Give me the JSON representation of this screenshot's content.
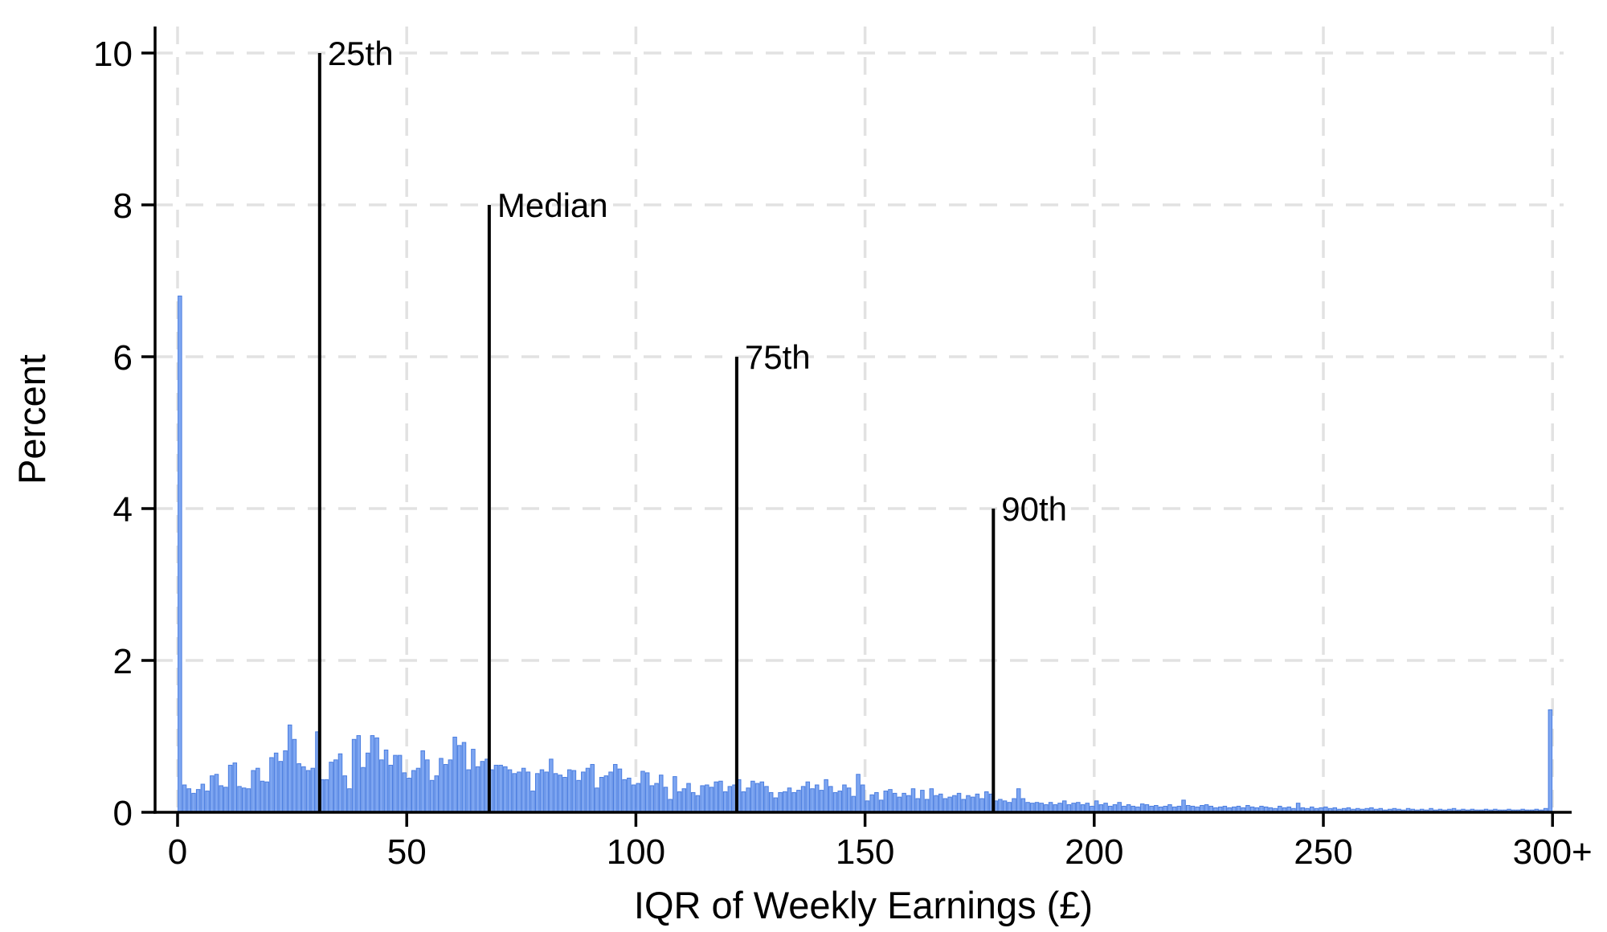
{
  "figure": {
    "background": "#ffffff",
    "description": "Histogram of the interquartile range of weekly earnings with percentile reference lines"
  },
  "chart_data": {
    "type": "bar",
    "subtype": "histogram",
    "title": "",
    "xlabel": "IQR of Weekly Earnings (£)",
    "ylabel": "Percent",
    "x_ticks": [
      0,
      50,
      100,
      150,
      200,
      250,
      300
    ],
    "x_tick_labels": [
      "0",
      "50",
      "100",
      "150",
      "200",
      "250",
      "300+"
    ],
    "y_ticks": [
      0,
      2,
      4,
      6,
      8,
      10
    ],
    "y_tick_labels": [
      "0",
      "2",
      "4",
      "6",
      "8",
      "10"
    ],
    "xlim": [
      -5,
      310
    ],
    "ylim": [
      0,
      10
    ],
    "grid": "dashed",
    "legend": "none",
    "bin_width": 1,
    "bin_start": 0,
    "top_code_label": "300+",
    "colors": {
      "bar_fill": "#7ea6f1",
      "bar_edge": "#4a7de0",
      "gridline": "#e2e2e2",
      "axis": "#000000",
      "reference_line": "#000000"
    },
    "reference_lines": [
      {
        "label": "25th",
        "value": 31,
        "line_top_percent": 10
      },
      {
        "label": "Median",
        "value": 68,
        "line_top_percent": 8
      },
      {
        "label": "75th",
        "value": 122,
        "line_top_percent": 6
      },
      {
        "label": "90th",
        "value": 178,
        "line_top_percent": 4
      }
    ],
    "values": [
      6.8,
      0.36,
      0.31,
      0.25,
      0.3,
      0.37,
      0.28,
      0.48,
      0.5,
      0.35,
      0.33,
      0.62,
      0.65,
      0.34,
      0.32,
      0.31,
      0.55,
      0.58,
      0.41,
      0.4,
      0.72,
      0.78,
      0.67,
      0.81,
      1.15,
      0.96,
      0.64,
      0.6,
      0.55,
      0.58,
      1.06,
      0.43,
      0.43,
      0.66,
      0.69,
      0.77,
      0.48,
      0.31,
      0.96,
      1.01,
      0.59,
      0.78,
      1.01,
      0.98,
      0.69,
      0.82,
      0.62,
      0.75,
      0.75,
      0.52,
      0.45,
      0.55,
      0.58,
      0.81,
      0.69,
      0.42,
      0.48,
      0.71,
      0.63,
      0.69,
      0.99,
      0.88,
      0.92,
      0.56,
      0.83,
      0.6,
      0.67,
      0.7,
      0.56,
      0.62,
      0.62,
      0.6,
      0.56,
      0.51,
      0.53,
      0.58,
      0.53,
      0.28,
      0.51,
      0.56,
      0.53,
      0.7,
      0.51,
      0.49,
      0.46,
      0.56,
      0.55,
      0.42,
      0.53,
      0.58,
      0.63,
      0.32,
      0.46,
      0.48,
      0.53,
      0.63,
      0.57,
      0.43,
      0.45,
      0.36,
      0.38,
      0.54,
      0.52,
      0.35,
      0.38,
      0.49,
      0.33,
      0.17,
      0.47,
      0.27,
      0.31,
      0.38,
      0.26,
      0.22,
      0.35,
      0.36,
      0.33,
      0.4,
      0.41,
      0.27,
      0.34,
      0.36,
      0.43,
      0.27,
      0.32,
      0.41,
      0.38,
      0.4,
      0.34,
      0.26,
      0.19,
      0.26,
      0.27,
      0.32,
      0.26,
      0.29,
      0.34,
      0.4,
      0.31,
      0.36,
      0.29,
      0.43,
      0.34,
      0.26,
      0.28,
      0.36,
      0.32,
      0.21,
      0.5,
      0.36,
      0.15,
      0.23,
      0.26,
      0.16,
      0.28,
      0.3,
      0.25,
      0.2,
      0.25,
      0.22,
      0.31,
      0.18,
      0.29,
      0.17,
      0.31,
      0.22,
      0.24,
      0.18,
      0.2,
      0.22,
      0.25,
      0.17,
      0.22,
      0.2,
      0.24,
      0.18,
      0.27,
      0.24,
      0.15,
      0.17,
      0.15,
      0.13,
      0.18,
      0.31,
      0.18,
      0.13,
      0.12,
      0.13,
      0.12,
      0.1,
      0.13,
      0.1,
      0.12,
      0.15,
      0.1,
      0.12,
      0.13,
      0.1,
      0.12,
      0.08,
      0.15,
      0.1,
      0.12,
      0.08,
      0.1,
      0.13,
      0.08,
      0.1,
      0.08,
      0.07,
      0.11,
      0.1,
      0.08,
      0.09,
      0.07,
      0.08,
      0.1,
      0.07,
      0.08,
      0.16,
      0.09,
      0.08,
      0.07,
      0.09,
      0.1,
      0.08,
      0.06,
      0.07,
      0.08,
      0.06,
      0.07,
      0.08,
      0.06,
      0.09,
      0.07,
      0.06,
      0.08,
      0.07,
      0.06,
      0.05,
      0.08,
      0.06,
      0.07,
      0.05,
      0.12,
      0.06,
      0.05,
      0.07,
      0.05,
      0.06,
      0.07,
      0.05,
      0.06,
      0.04,
      0.05,
      0.06,
      0.04,
      0.05,
      0.04,
      0.05,
      0.06,
      0.04,
      0.05,
      0.03,
      0.04,
      0.05,
      0.04,
      0.03,
      0.05,
      0.04,
      0.03,
      0.04,
      0.03,
      0.05,
      0.03,
      0.04,
      0.03,
      0.04,
      0.05,
      0.03,
      0.04,
      0.03,
      0.04,
      0.03,
      0.03,
      0.04,
      0.03,
      0.04,
      0.03,
      0.03,
      0.04,
      0.03,
      0.03,
      0.04,
      0.03,
      0.03,
      0.04,
      0.03,
      0.05,
      1.35
    ]
  }
}
